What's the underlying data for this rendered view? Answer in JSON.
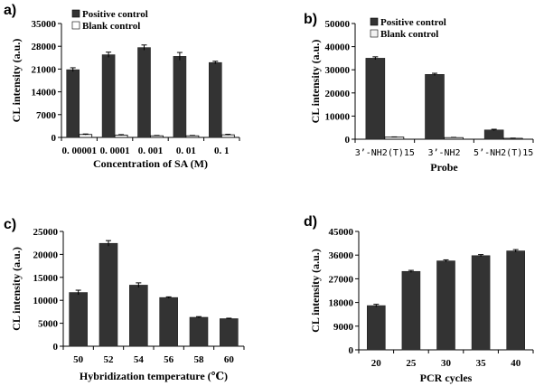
{
  "chart_data": [
    {
      "panel": "a)",
      "type": "bar",
      "xlabel": "Concentration of SA (M)",
      "ylabel": "CL intensity (a.u.)",
      "ylim": [
        0,
        35000
      ],
      "yticks": [
        "0",
        "7000",
        "14000",
        "21000",
        "28000",
        "35000"
      ],
      "categories": [
        "0. 00001",
        "0. 0001",
        "0. 001",
        "0. 01",
        "0. 1"
      ],
      "legend_position": "top-left",
      "series": [
        {
          "name": "Positive control",
          "values": [
            20800,
            25400,
            27600,
            24900,
            23000
          ],
          "errors": [
            600,
            800,
            800,
            1200,
            400
          ],
          "color": "#333333"
        },
        {
          "name": "Blank control",
          "values": [
            900,
            700,
            500,
            500,
            800
          ],
          "errors": [
            150,
            150,
            100,
            100,
            150
          ],
          "color": "#ffffff"
        }
      ]
    },
    {
      "panel": "b)",
      "type": "bar",
      "xlabel": "Probe",
      "ylabel": "CL intensity (a.u.)",
      "ylim": [
        0,
        50000
      ],
      "yticks": [
        "0",
        "10000",
        "20000",
        "30000",
        "40000",
        "50000"
      ],
      "categories": [
        "3’-NH2(T)15",
        "3’-NH2",
        "5’-NH2(T)15"
      ],
      "legend_position": "top",
      "series": [
        {
          "name": "Positive control",
          "values": [
            35000,
            28000,
            4000
          ],
          "errors": [
            600,
            500,
            300
          ],
          "color": "#333333"
        },
        {
          "name": "Blank control",
          "values": [
            900,
            700,
            400
          ],
          "errors": [
            100,
            100,
            80
          ],
          "color": "#f2f2f2"
        }
      ]
    },
    {
      "panel": "c)",
      "type": "bar",
      "xlabel": "Hybridization temperature (℃)",
      "ylabel": "CL intensity (a.u.)",
      "ylim": [
        0,
        25000
      ],
      "yticks": [
        "0",
        "5000",
        "10000",
        "15000",
        "20000",
        "25000"
      ],
      "categories": [
        "50",
        "52",
        "54",
        "56",
        "58",
        "60"
      ],
      "series": [
        {
          "name": "CL intensity",
          "values": [
            11700,
            22400,
            13300,
            10600,
            6300,
            6000
          ],
          "errors": [
            500,
            600,
            500,
            150,
            150,
            100
          ],
          "color": "#333333"
        }
      ]
    },
    {
      "panel": "d)",
      "type": "bar",
      "xlabel": "PCR cycles",
      "ylabel": "CL intensity (a.u.)",
      "ylim": [
        0,
        45000
      ],
      "yticks": [
        "0",
        "9000",
        "18000",
        "27000",
        "36000",
        "45000"
      ],
      "categories": [
        "20",
        "25",
        "30",
        "35",
        "40"
      ],
      "series": [
        {
          "name": "CL intensity",
          "values": [
            16800,
            29800,
            33800,
            35800,
            37600
          ],
          "errors": [
            500,
            400,
            400,
            400,
            500
          ],
          "color": "#333333"
        }
      ]
    }
  ]
}
